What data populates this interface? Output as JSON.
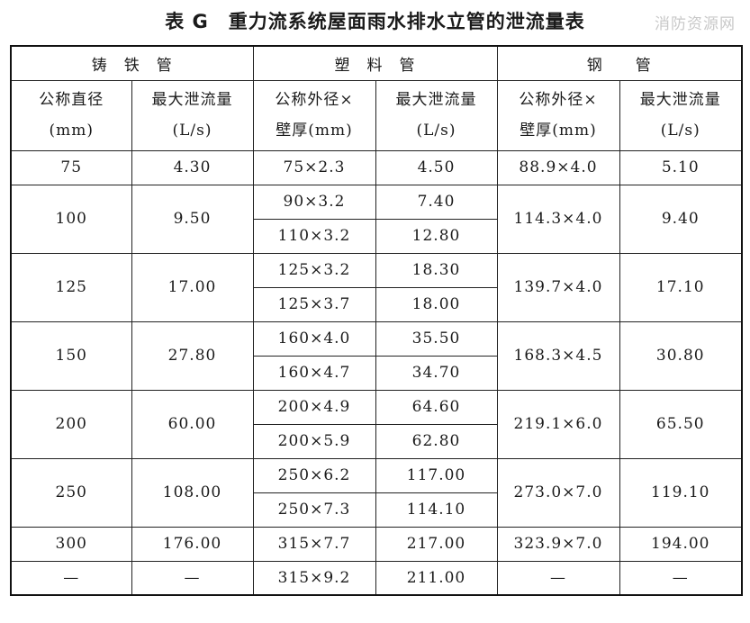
{
  "title": "表 G　重力流系统屋面雨水排水立管的泄流量表",
  "watermark": "消防资源网",
  "groups": {
    "cast": "铸　铁　管",
    "plastic": "塑　料　管",
    "steel": "钢　　管"
  },
  "headers": {
    "cast_dn_1": "公称直径",
    "cast_dn_2": "(mm)",
    "cast_q_1": "最大泄流量",
    "cast_q_2": "(L/s)",
    "plastic_od_1": "公称外径×",
    "plastic_od_2": "壁厚(mm)",
    "plastic_q_1": "最大泄流量",
    "plastic_q_2": "(L/s)",
    "steel_od_1": "公称外径×",
    "steel_od_2": "壁厚(mm)",
    "steel_q_1": "最大泄流量",
    "steel_q_2": "(L/s)"
  },
  "rows": {
    "r75": {
      "dn": "75",
      "q": "4.30",
      "p1": "75×2.3",
      "pq1": "4.50",
      "s": "88.9×4.0",
      "sq": "5.10"
    },
    "r100": {
      "dn": "100",
      "q": "9.50",
      "p1": "90×3.2",
      "pq1": "7.40",
      "p2": "110×3.2",
      "pq2": "12.80",
      "s": "114.3×4.0",
      "sq": "9.40"
    },
    "r125": {
      "dn": "125",
      "q": "17.00",
      "p1": "125×3.2",
      "pq1": "18.30",
      "p2": "125×3.7",
      "pq2": "18.00",
      "s": "139.7×4.0",
      "sq": "17.10"
    },
    "r150": {
      "dn": "150",
      "q": "27.80",
      "p1": "160×4.0",
      "pq1": "35.50",
      "p2": "160×4.7",
      "pq2": "34.70",
      "s": "168.3×4.5",
      "sq": "30.80"
    },
    "r200": {
      "dn": "200",
      "q": "60.00",
      "p1": "200×4.9",
      "pq1": "64.60",
      "p2": "200×5.9",
      "pq2": "62.80",
      "s": "219.1×6.0",
      "sq": "65.50"
    },
    "r250": {
      "dn": "250",
      "q": "108.00",
      "p1": "250×6.2",
      "pq1": "117.00",
      "p2": "250×7.3",
      "pq2": "114.10",
      "s": "273.0×7.0",
      "sq": "119.10"
    },
    "r300": {
      "dn": "300",
      "q": "176.00",
      "p1": "315×7.7",
      "pq1": "217.00",
      "s": "323.9×7.0",
      "sq": "194.00"
    },
    "rlast": {
      "dn": "—",
      "q": "—",
      "p1": "315×9.2",
      "pq1": "211.00",
      "s": "—",
      "sq": "—"
    }
  }
}
